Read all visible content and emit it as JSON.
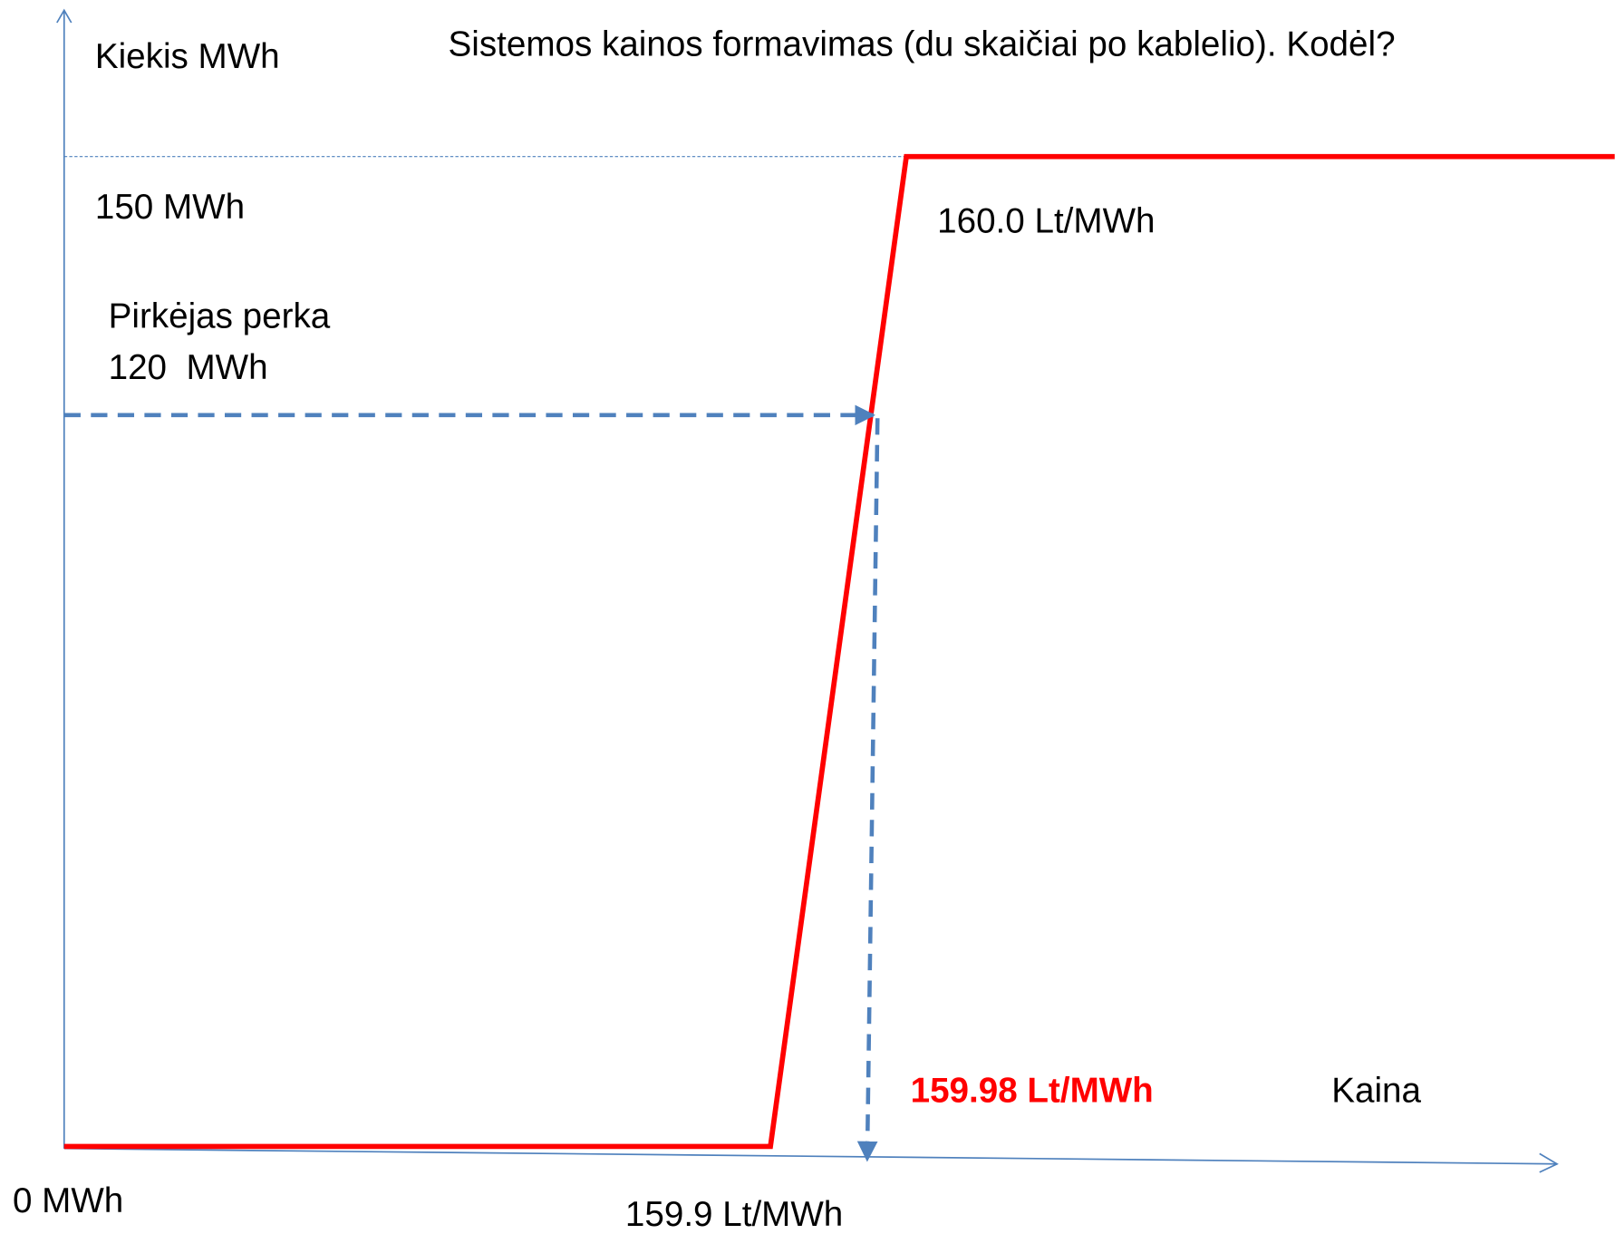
{
  "title": "Sistemos kainos formavimas (du skaičiai po kablelio). Kodėl?",
  "axes": {
    "y_label": "Kiekis MWh",
    "x_label": "Kaina"
  },
  "labels": {
    "quantity_max": "150 MWh",
    "price_upper": "160.0 Lt/MWh",
    "buyer_line1": "Pirkėjas perka",
    "buyer_line2": "120  MWh",
    "system_price": "159.98 Lt/MWh",
    "quantity_zero": "0 MWh",
    "price_lower": "159.9 Lt/MWh"
  }
}
